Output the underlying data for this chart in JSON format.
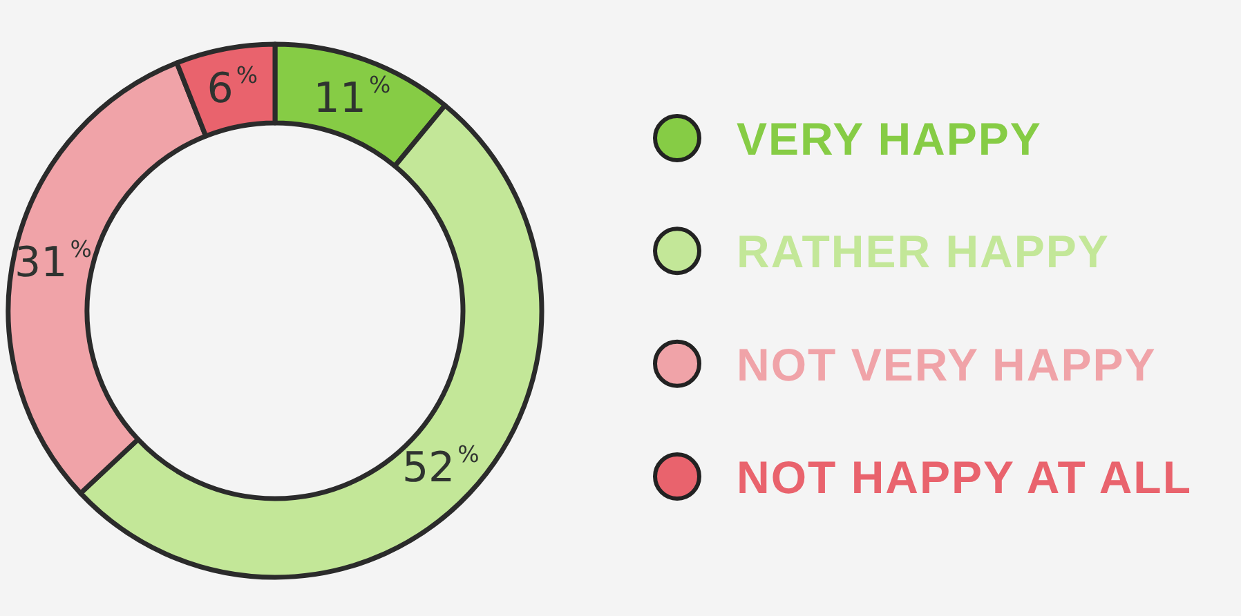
{
  "chart_data": {
    "type": "donut",
    "categories": [
      "VERY HAPPY",
      "RATHER HAPPY",
      "NOT VERY HAPPY",
      "NOT HAPPY AT ALL"
    ],
    "values": [
      11,
      52,
      31,
      6
    ],
    "colors": [
      "#86cc45",
      "#c3e798",
      "#f0a3a8",
      "#e9636d"
    ],
    "value_labels": [
      "11$^{%}$",
      "52$^{%}$",
      "31$^{%}$",
      "6$^{%}$"
    ],
    "legend": "right"
  }
}
